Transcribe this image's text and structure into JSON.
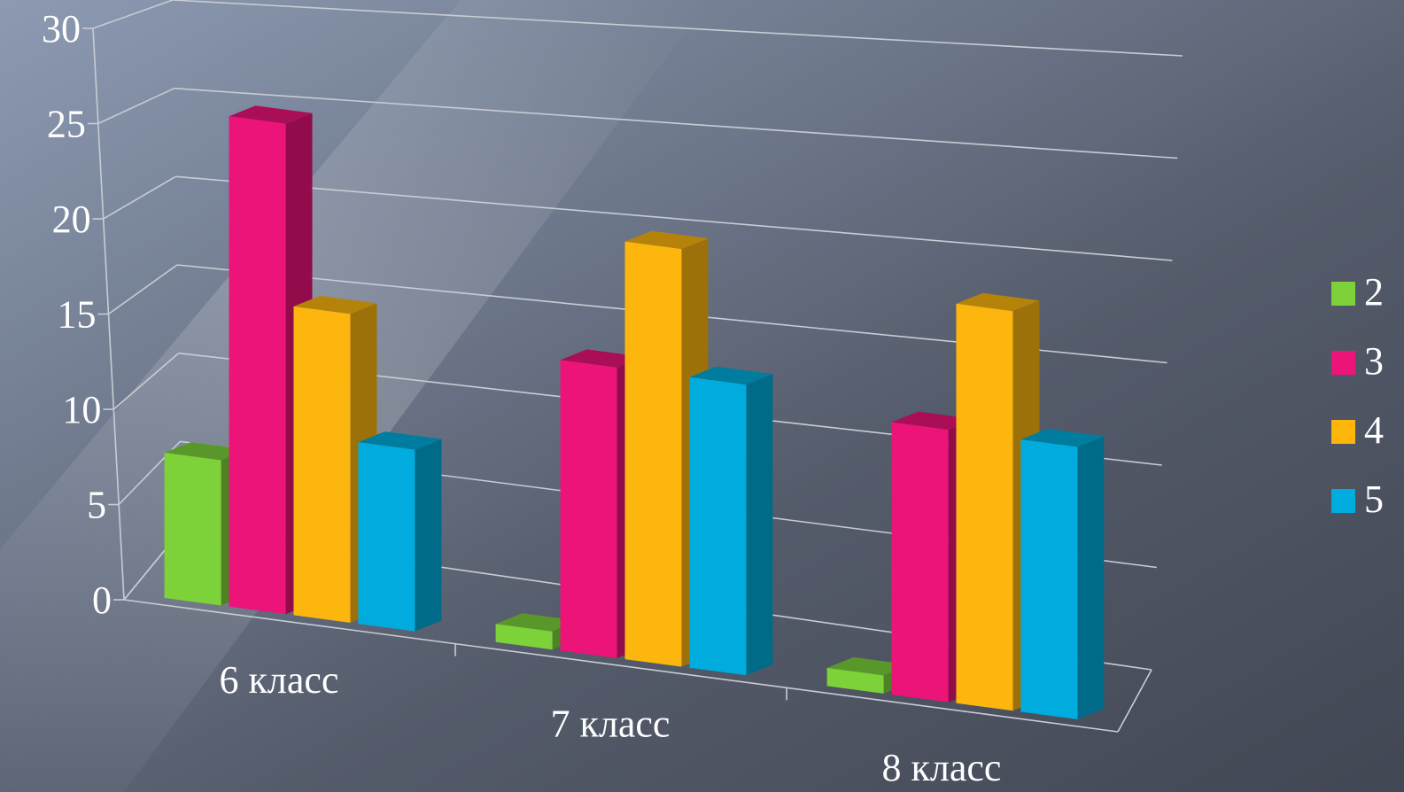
{
  "chart_data": {
    "type": "bar",
    "style": "3d-clustered-column",
    "categories": [
      "6 класс",
      "7 класс",
      "8 класс"
    ],
    "series": [
      {
        "name": "2",
        "color": "#7dd23a",
        "values": [
          8,
          1,
          1
        ]
      },
      {
        "name": "3",
        "color": "#ec1479",
        "values": [
          27,
          16,
          15
        ]
      },
      {
        "name": "4",
        "color": "#fdb60e",
        "values": [
          17,
          23,
          22
        ]
      },
      {
        "name": "5",
        "color": "#00acdd",
        "values": [
          10,
          16,
          15
        ]
      }
    ],
    "yticks": [
      "0",
      "5",
      "10",
      "15",
      "20",
      "25",
      "30"
    ],
    "ylim": [
      0,
      30
    ],
    "grid": true,
    "legend_position": "right",
    "background": "#4d5361"
  }
}
